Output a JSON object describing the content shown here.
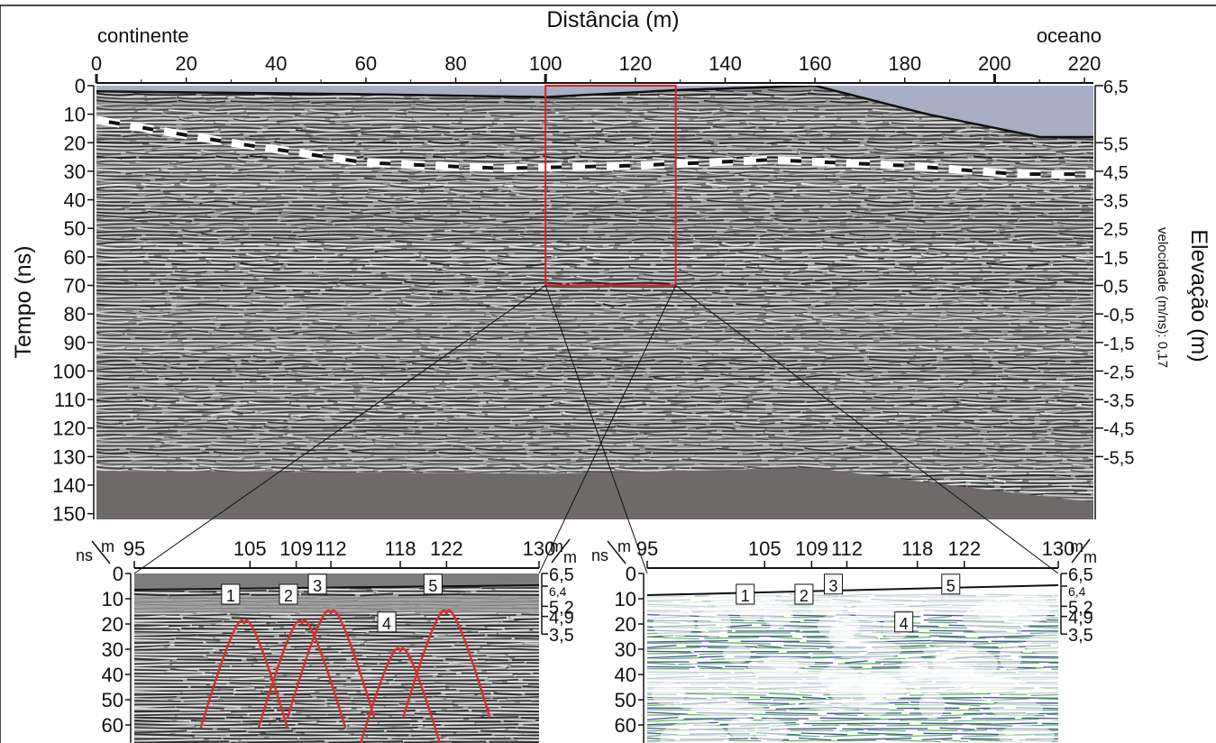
{
  "main": {
    "title": "Distância (m)",
    "left_label": "continente",
    "right_label": "oceano",
    "y_label": "Tempo (ns)",
    "right_axis_label": "Elevação (m)",
    "velocity_label": "velocidade (m/ns): 0,17",
    "distance_ticks": [
      "0",
      "20",
      "40",
      "60",
      "80",
      "100",
      "120",
      "140",
      "160",
      "180",
      "200",
      "220"
    ],
    "distance_values": [
      0,
      20,
      40,
      60,
      80,
      100,
      120,
      140,
      160,
      180,
      200,
      220
    ],
    "time_ticks": [
      "0",
      "10",
      "20",
      "30",
      "40",
      "50",
      "60",
      "70",
      "80",
      "90",
      "100",
      "110",
      "120",
      "130",
      "140",
      "150"
    ],
    "time_values": [
      0,
      10,
      20,
      30,
      40,
      50,
      60,
      70,
      80,
      90,
      100,
      110,
      120,
      130,
      140,
      150
    ],
    "elevation_ticks": [
      "6,5",
      "5,5",
      "4,5",
      "3,5",
      "2,5",
      "1,5",
      "0,5",
      "-0,5",
      "-1,5",
      "-2,5",
      "-3,5",
      "-4,5",
      "-5,5"
    ],
    "elevation_times": [
      0,
      20,
      30,
      40,
      50,
      60,
      70,
      80,
      90,
      100,
      110,
      120,
      130
    ],
    "x_range": [
      0,
      222
    ],
    "y_range": [
      0,
      152
    ],
    "zoom_box": {
      "x_start": 100,
      "x_end": 129,
      "t_start": 0,
      "t_end": 70
    }
  },
  "inset_left": {
    "corner_top": "m",
    "corner_bottom": "ns",
    "right_corner_top": "m",
    "right_corner_bottom": "m",
    "distance_ticks": [
      "95",
      "105",
      "109",
      "112",
      "118",
      "122",
      "130"
    ],
    "distance_values": [
      95,
      105,
      109,
      112,
      118,
      122,
      130
    ],
    "time_ticks": [
      "0",
      "10",
      "20",
      "30",
      "40",
      "50",
      "60"
    ],
    "time_values": [
      0,
      10,
      20,
      30,
      40,
      50,
      60
    ],
    "elevation_ticks": [
      "6,5",
      "6,4",
      "5,2",
      "4,9",
      "3,5"
    ],
    "elevation_times": [
      0,
      5,
      13,
      17,
      24
    ],
    "hyperbola_labels": [
      "1",
      "2",
      "3",
      "4",
      "5"
    ],
    "hyperbolas": [
      {
        "label": "1",
        "x": 104.5,
        "t": 20
      },
      {
        "label": "2",
        "x": 109.5,
        "t": 20
      },
      {
        "label": "3",
        "x": 112,
        "t": 16
      },
      {
        "label": "4",
        "x": 118,
        "t": 31
      },
      {
        "label": "5",
        "x": 122,
        "t": 16
      }
    ]
  },
  "inset_right": {
    "corner_top": "m",
    "corner_bottom": "ns",
    "right_corner_top": "m",
    "right_corner_bottom": "m",
    "distance_ticks": [
      "95",
      "105",
      "109",
      "112",
      "118",
      "122",
      "130"
    ],
    "distance_values": [
      95,
      105,
      109,
      112,
      118,
      122,
      130
    ],
    "time_ticks": [
      "0",
      "10",
      "20",
      "30",
      "40",
      "50",
      "60"
    ],
    "time_values": [
      0,
      10,
      20,
      30,
      40,
      50,
      60
    ],
    "elevation_ticks": [
      "6,5",
      "6,4",
      "5,2",
      "4,9",
      "3,5"
    ],
    "elevation_times": [
      0,
      5,
      13,
      17,
      24
    ],
    "hyperbola_labels": [
      "1",
      "2",
      "3",
      "4",
      "5"
    ]
  },
  "colors": {
    "surface": "#a9aec6",
    "deep_zone": "#6e6a69",
    "zoom_box": "#e02020",
    "hyperbola": "#d6302a",
    "inset_blue": "#2a2d9a",
    "inset_green": "#3fb03f"
  }
}
